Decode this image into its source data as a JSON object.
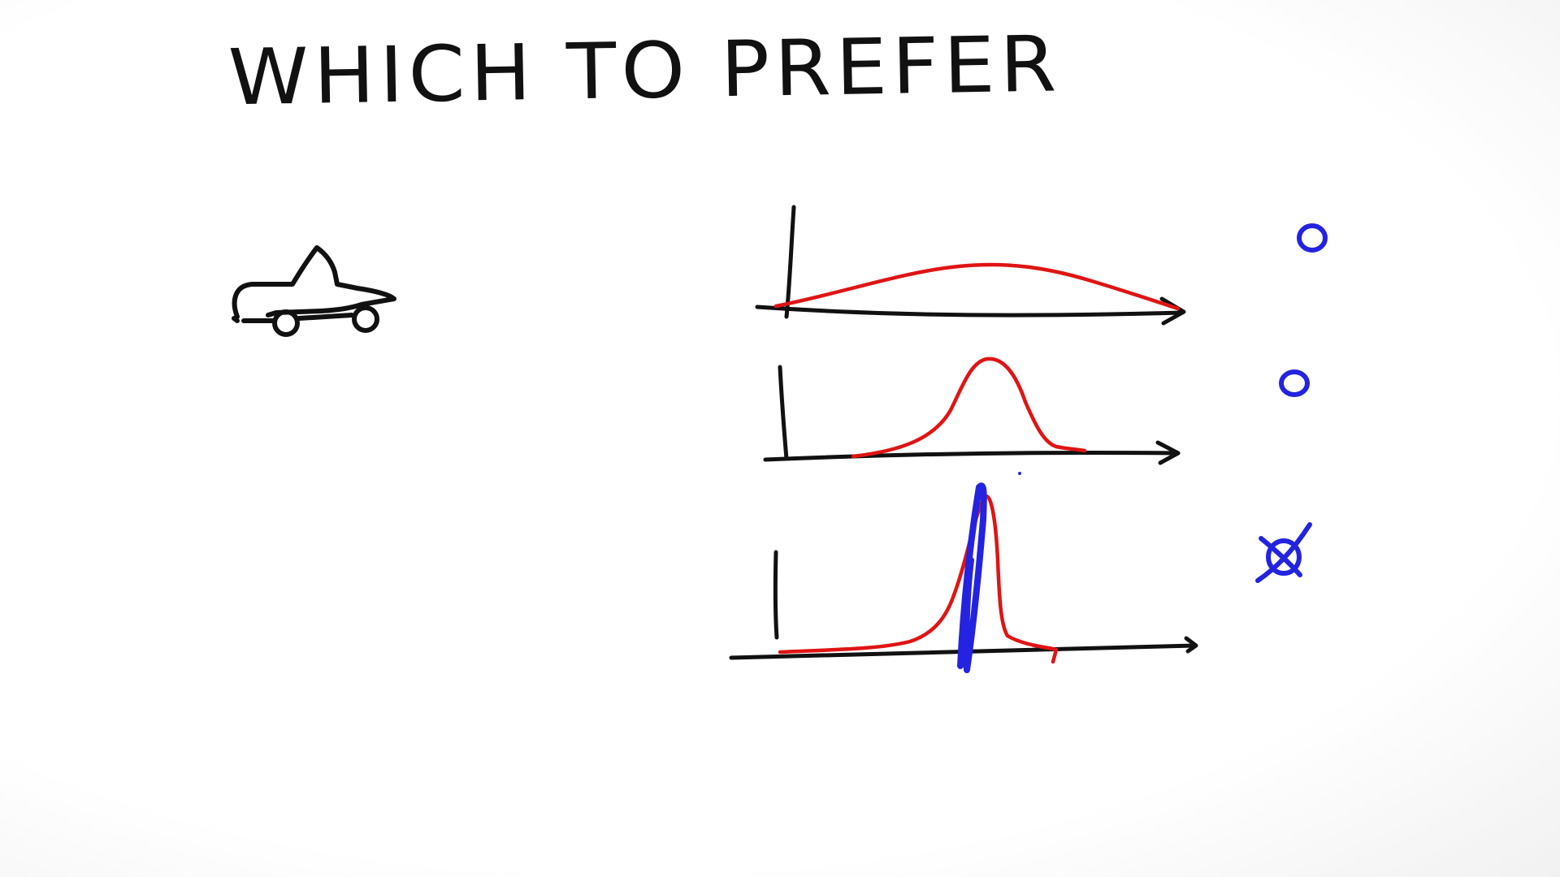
{
  "title": "WHICH TO PREFER",
  "icons": {
    "car": "car-sketch-icon"
  },
  "colors": {
    "ink": "#111111",
    "curve": "#e01414",
    "marker": "#2323e0"
  },
  "plots": [
    {
      "name": "wide-distribution",
      "shape": "broad hump",
      "mark": "circle"
    },
    {
      "name": "medium-distribution",
      "shape": "bell curve",
      "mark": "circle"
    },
    {
      "name": "narrow-distribution",
      "shape": "sharp spike",
      "mark": "crossed-circle"
    }
  ]
}
